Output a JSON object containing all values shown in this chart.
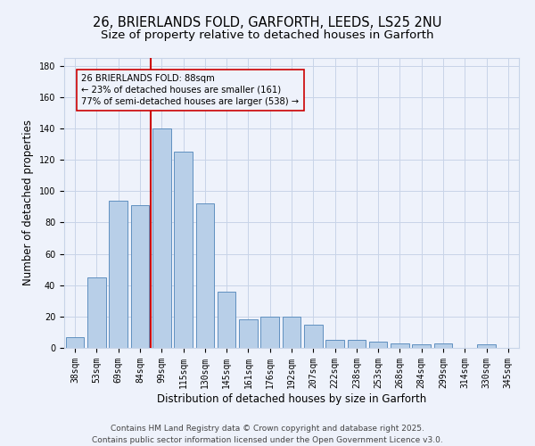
{
  "title_line1": "26, BRIERLANDS FOLD, GARFORTH, LEEDS, LS25 2NU",
  "title_line2": "Size of property relative to detached houses in Garforth",
  "xlabel": "Distribution of detached houses by size in Garforth",
  "ylabel": "Number of detached properties",
  "categories": [
    "38sqm",
    "53sqm",
    "69sqm",
    "84sqm",
    "99sqm",
    "115sqm",
    "130sqm",
    "145sqm",
    "161sqm",
    "176sqm",
    "192sqm",
    "207sqm",
    "222sqm",
    "238sqm",
    "253sqm",
    "268sqm",
    "284sqm",
    "299sqm",
    "314sqm",
    "330sqm",
    "345sqm"
  ],
  "values": [
    7,
    45,
    94,
    91,
    140,
    125,
    92,
    36,
    18,
    20,
    20,
    15,
    5,
    5,
    4,
    3,
    2,
    3,
    0,
    2,
    0
  ],
  "bar_color": "#b8cfe8",
  "bar_edge_color": "#6090c0",
  "background_color": "#eef2fb",
  "grid_color": "#c8d4e8",
  "vline_x": 3.5,
  "vline_color": "#cc0000",
  "annotation_text": "26 BRIERLANDS FOLD: 88sqm\n← 23% of detached houses are smaller (161)\n77% of semi-detached houses are larger (538) →",
  "annotation_box_color": "#cc0000",
  "ylim": [
    0,
    185
  ],
  "yticks": [
    0,
    20,
    40,
    60,
    80,
    100,
    120,
    140,
    160,
    180
  ],
  "footer_text": "Contains HM Land Registry data © Crown copyright and database right 2025.\nContains public sector information licensed under the Open Government Licence v3.0.",
  "title_fontsize": 10.5,
  "subtitle_fontsize": 9.5,
  "axis_label_fontsize": 8.5,
  "tick_fontsize": 7,
  "footer_fontsize": 6.5
}
